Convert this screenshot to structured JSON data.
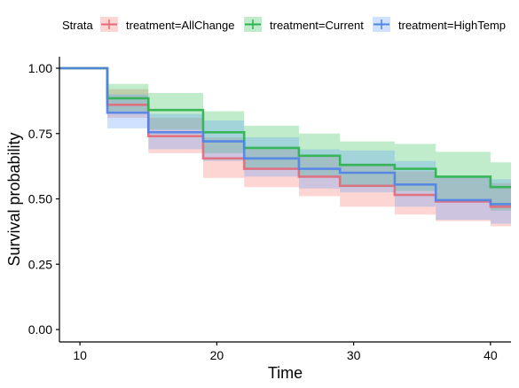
{
  "chart_data": {
    "type": "line",
    "step": true,
    "xlabel": "Time",
    "ylabel": "Survival probability",
    "xlim": [
      8.5,
      41.5
    ],
    "ylim": [
      0,
      1
    ],
    "x_ticks": [
      10,
      20,
      30,
      40
    ],
    "y_ticks": [
      0.0,
      0.25,
      0.5,
      0.75,
      1.0
    ],
    "y_tick_labels": [
      "0.00",
      "0.25",
      "0.50",
      "0.75",
      "1.00"
    ],
    "legend": {
      "title": "Strata",
      "position": "top",
      "entries": [
        "treatment=AllChange",
        "treatment=Current",
        "treatment=HighTemp"
      ]
    },
    "series": [
      {
        "name": "treatment=AllChange",
        "color": "#e06a78",
        "band_color": "#f8766d",
        "x": [
          8.5,
          12,
          15,
          19,
          22,
          26,
          29,
          33,
          36,
          40,
          41.5
        ],
        "y": [
          1.0,
          0.86,
          0.74,
          0.655,
          0.615,
          0.585,
          0.55,
          0.515,
          0.49,
          0.47,
          0.47
        ],
        "lower": [
          1.0,
          0.81,
          0.675,
          0.58,
          0.545,
          0.51,
          0.47,
          0.44,
          0.415,
          0.395,
          0.395
        ],
        "upper": [
          1.0,
          0.92,
          0.81,
          0.735,
          0.695,
          0.665,
          0.635,
          0.605,
          0.585,
          0.56,
          0.56
        ]
      },
      {
        "name": "treatment=Current",
        "color": "#2bb24d",
        "band_color": "#2ebf54",
        "x": [
          8.5,
          12,
          15,
          19,
          22,
          26,
          29,
          33,
          36,
          40,
          41.5
        ],
        "y": [
          1.0,
          0.885,
          0.84,
          0.755,
          0.695,
          0.665,
          0.63,
          0.615,
          0.585,
          0.545,
          0.545
        ],
        "lower": [
          1.0,
          0.835,
          0.765,
          0.675,
          0.615,
          0.585,
          0.545,
          0.53,
          0.49,
          0.455,
          0.455
        ],
        "upper": [
          1.0,
          0.94,
          0.905,
          0.835,
          0.78,
          0.75,
          0.72,
          0.71,
          0.68,
          0.64,
          0.64
        ]
      },
      {
        "name": "treatment=HighTemp",
        "color": "#4f83e6",
        "band_color": "#619cff",
        "x": [
          8.5,
          12,
          15,
          19,
          22,
          26,
          29,
          33,
          36,
          40,
          41.5
        ],
        "y": [
          1.0,
          0.83,
          0.755,
          0.72,
          0.655,
          0.615,
          0.6,
          0.555,
          0.495,
          0.48,
          0.48
        ],
        "lower": [
          1.0,
          0.77,
          0.69,
          0.645,
          0.585,
          0.54,
          0.525,
          0.47,
          0.42,
          0.405,
          0.405
        ],
        "upper": [
          1.0,
          0.9,
          0.825,
          0.8,
          0.735,
          0.69,
          0.685,
          0.645,
          0.585,
          0.575,
          0.575
        ]
      }
    ]
  }
}
